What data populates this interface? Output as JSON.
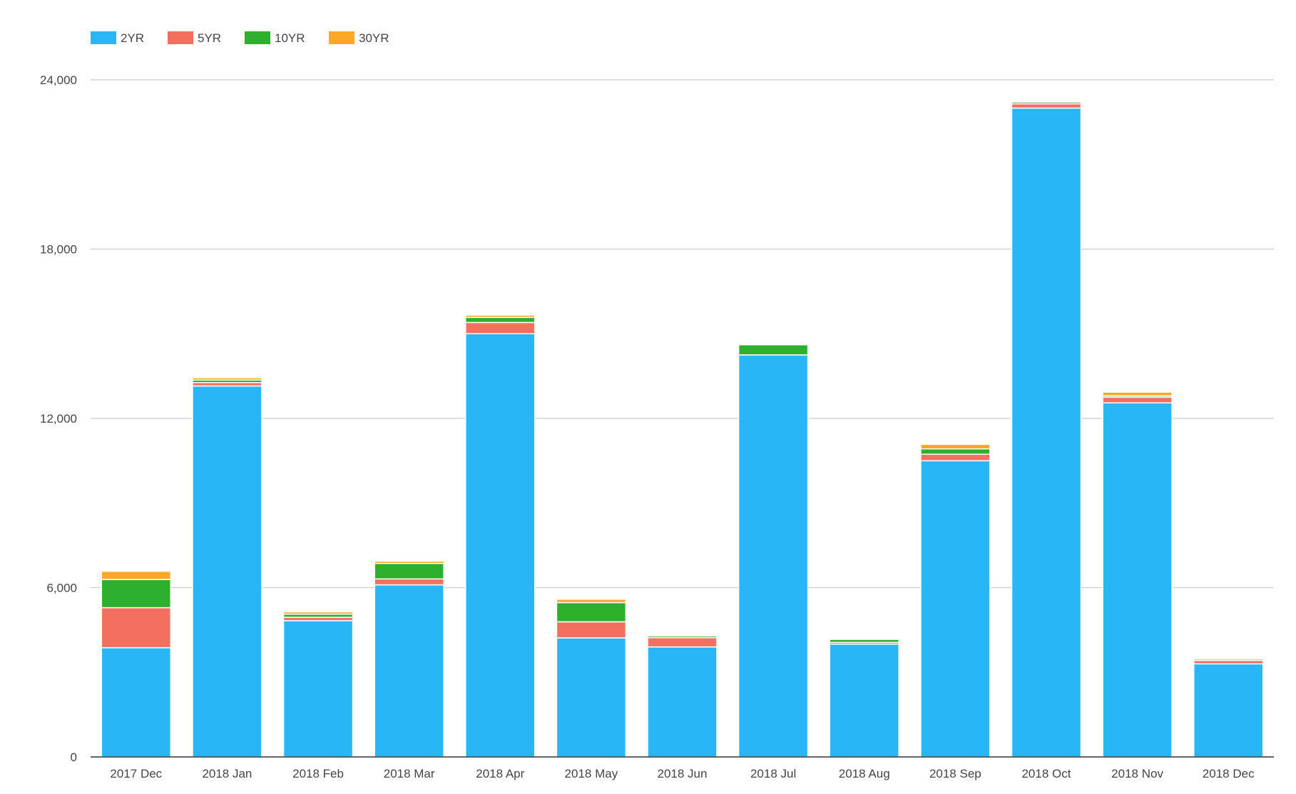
{
  "chart_data": {
    "type": "bar",
    "stacked": true,
    "categories": [
      "2017 Dec",
      "2018 Jan",
      "2018 Feb",
      "2018 Mar",
      "2018 Apr",
      "2018 May",
      "2018 Jun",
      "2018 Jul",
      "2018 Aug",
      "2018 Sep",
      "2018 Oct",
      "2018 Nov",
      "2018 Dec"
    ],
    "series": [
      {
        "name": "2YR",
        "color": "#29b6f6",
        "values": [
          3870,
          13150,
          4830,
          6100,
          15000,
          4220,
          3900,
          14250,
          4000,
          10500,
          23000,
          12550,
          3300
        ]
      },
      {
        "name": "5YR",
        "color": "#f36f5f",
        "values": [
          1420,
          120,
          120,
          210,
          400,
          570,
          330,
          0,
          60,
          230,
          150,
          200,
          120
        ]
      },
      {
        "name": "10YR",
        "color": "#2eaf2e",
        "values": [
          1000,
          90,
          110,
          550,
          180,
          680,
          60,
          360,
          110,
          190,
          60,
          50,
          50
        ]
      },
      {
        "name": "30YR",
        "color": "#ffa726",
        "values": [
          290,
          80,
          80,
          80,
          80,
          120,
          20,
          30,
          30,
          160,
          40,
          130,
          40
        ]
      }
    ],
    "ylim": [
      0,
      24000
    ],
    "yticks": [
      0,
      6000,
      12000,
      18000,
      24000
    ],
    "ytick_labels": [
      "0",
      "6,000",
      "12,000",
      "18,000",
      "24,000"
    ],
    "grid": true,
    "legend_position": "top-left",
    "title": "",
    "xlabel": "",
    "ylabel": ""
  }
}
